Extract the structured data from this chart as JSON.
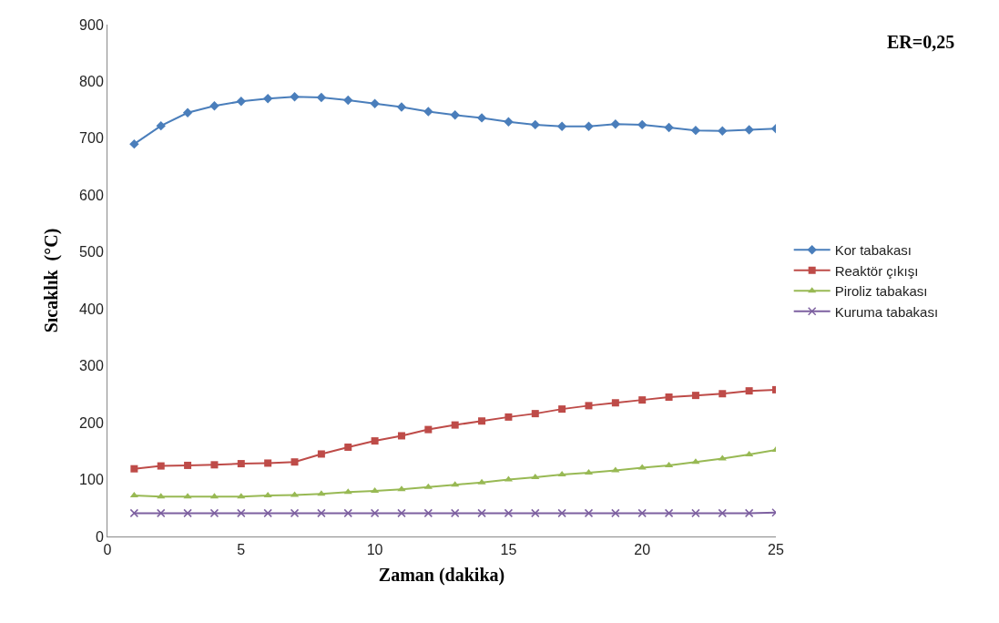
{
  "chart_data": {
    "type": "line",
    "xlabel": "Zaman (dakika)",
    "ylabel": "Sıcaklık  (°C)",
    "annotations": [
      "ER=0,25"
    ],
    "x": [
      1,
      2,
      3,
      4,
      5,
      6,
      7,
      8,
      9,
      10,
      11,
      12,
      13,
      14,
      15,
      16,
      17,
      18,
      19,
      20,
      21,
      22,
      23,
      24,
      25
    ],
    "xlim": [
      0,
      25
    ],
    "xticks": [
      0,
      5,
      10,
      15,
      20,
      25
    ],
    "ylim": [
      0,
      900
    ],
    "yticks": [
      0,
      100,
      200,
      300,
      400,
      500,
      600,
      700,
      800,
      900
    ],
    "grid": false,
    "legend": "right",
    "line_style": "solid",
    "series": [
      {
        "name": "Kor tabakası",
        "color": "#4a7ebb",
        "marker": "diamond",
        "values": [
          690,
          722,
          745,
          757,
          765,
          770,
          773,
          772,
          767,
          761,
          755,
          747,
          741,
          736,
          729,
          724,
          721,
          721,
          725,
          724,
          719,
          714,
          713,
          715,
          717
        ]
      },
      {
        "name": "Reaktör çıkışı",
        "color": "#be4b48",
        "marker": "square",
        "values": [
          119,
          124,
          125,
          126,
          128,
          129,
          131,
          145,
          157,
          168,
          177,
          188,
          196,
          203,
          210,
          216,
          224,
          230,
          235,
          240,
          245,
          248,
          251,
          256,
          258
        ]
      },
      {
        "name": "Piroliz tabakası",
        "color": "#98b954",
        "marker": "triangle",
        "values": [
          72,
          70,
          70,
          70,
          70,
          72,
          73,
          75,
          78,
          80,
          83,
          87,
          91,
          95,
          100,
          104,
          109,
          112,
          116,
          121,
          125,
          131,
          137,
          144,
          152
        ]
      },
      {
        "name": "Kuruma tabakası",
        "color": "#7d60a0",
        "marker": "cross",
        "values": [
          41,
          41,
          41,
          41,
          41,
          41,
          41,
          41,
          41,
          41,
          41,
          41,
          41,
          41,
          41,
          41,
          41,
          41,
          41,
          41,
          41,
          41,
          41,
          41,
          42
        ]
      }
    ]
  }
}
